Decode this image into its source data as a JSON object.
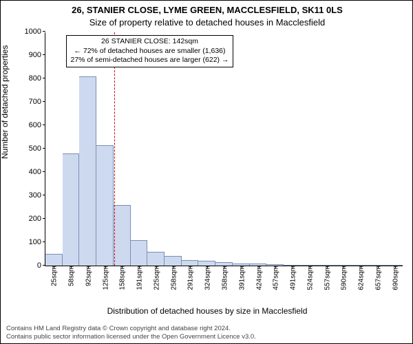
{
  "chart": {
    "type": "histogram",
    "title_line1": "26, STANIER CLOSE, LYME GREEN, MACCLESFIELD, SK11 0LS",
    "title_line2": "Size of property relative to detached houses in Macclesfield",
    "title_fontsize": 13,
    "ylabel": "Number of detached properties",
    "xlabel": "Distribution of detached houses by size in Macclesfield",
    "label_fontsize": 12,
    "background_color": "#ffffff",
    "bar_fill": "#cdd9ee",
    "bar_stroke": "#7a8fb5",
    "ref_line_color": "#cc0000",
    "ref_value_sqm": 142,
    "ylim": [
      0,
      1000
    ],
    "ytick_step": 100,
    "y_ticks": [
      0,
      100,
      200,
      300,
      400,
      500,
      600,
      700,
      800,
      900,
      1000
    ],
    "x_tick_labels": [
      "25sqm",
      "58sqm",
      "92sqm",
      "125sqm",
      "158sqm",
      "191sqm",
      "225sqm",
      "258sqm",
      "291sqm",
      "324sqm",
      "358sqm",
      "391sqm",
      "424sqm",
      "457sqm",
      "491sqm",
      "524sqm",
      "557sqm",
      "590sqm",
      "624sqm",
      "657sqm",
      "690sqm"
    ],
    "x_tick_values": [
      25,
      58,
      92,
      125,
      158,
      191,
      225,
      258,
      291,
      324,
      358,
      391,
      424,
      457,
      491,
      524,
      557,
      590,
      624,
      657,
      690
    ],
    "values": [
      50,
      480,
      810,
      515,
      260,
      110,
      60,
      40,
      25,
      20,
      15,
      10,
      8,
      5,
      3,
      2,
      1,
      1,
      1,
      1,
      1
    ],
    "annotation": {
      "line1": "26 STANIER CLOSE: 142sqm",
      "line2": "← 72% of detached houses are smaller (1,636)",
      "line3": "27% of semi-detached houses are larger (622) →"
    },
    "footer_line1": "Contains HM Land Registry data © Crown copyright and database right 2024.",
    "footer_line2": "Contains public sector information licensed under the Open Government Licence v3.0."
  }
}
